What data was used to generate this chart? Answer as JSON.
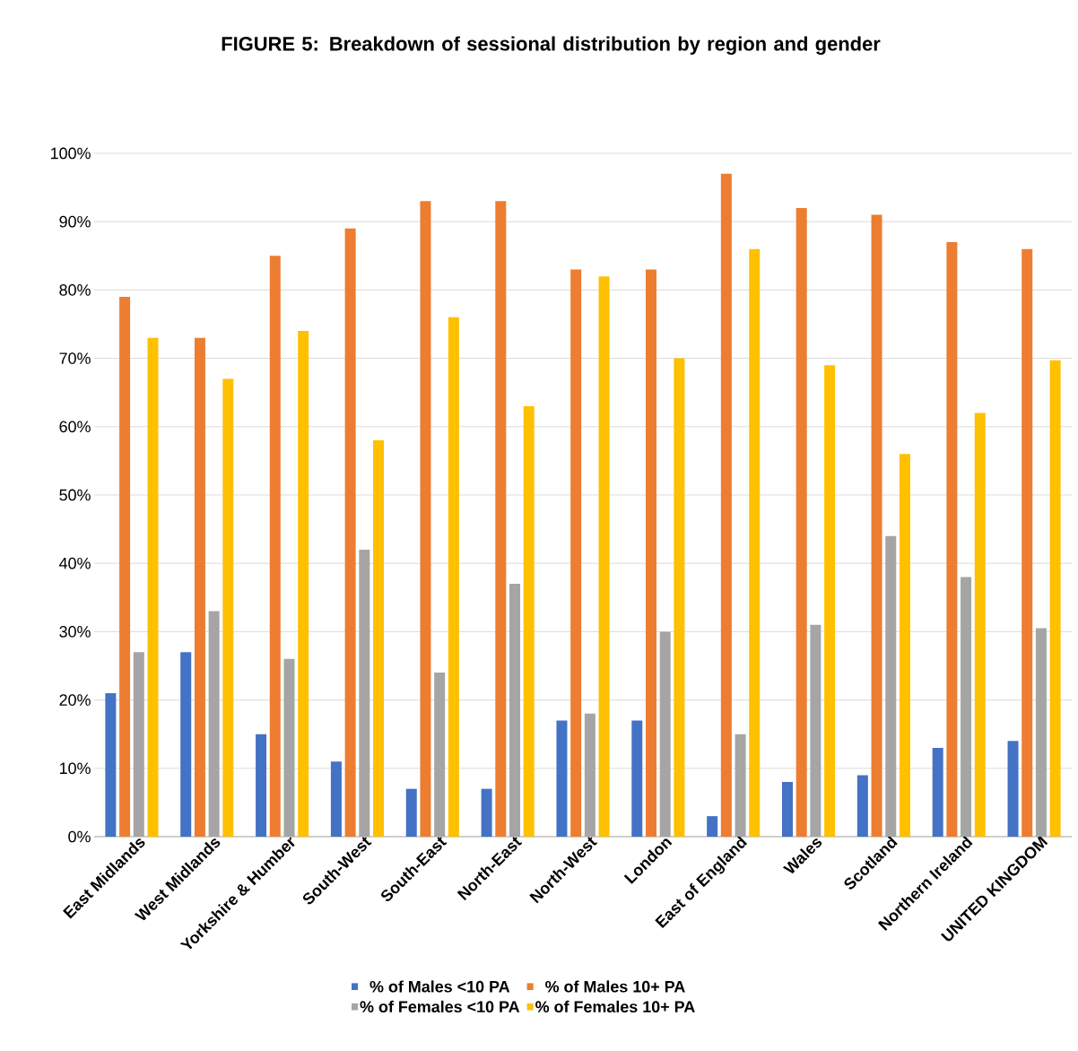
{
  "chart_data": {
    "type": "bar",
    "title": "FIGURE 5: Breakdown of sessional distribution by region and gender",
    "categories": [
      "East Midlands",
      "West Midlands",
      "Yorkshire & Humber",
      "South-West",
      "South-East",
      "North-East",
      "North-West",
      "London",
      "East of England",
      "Wales",
      "Scotland",
      "Northern Ireland",
      "UNITED KINGDOM"
    ],
    "series": [
      {
        "name": "% of Males <10 PA",
        "color": "#4472c4",
        "values": [
          21,
          27,
          15,
          11,
          7,
          7,
          17,
          17,
          3,
          8,
          9,
          13,
          14
        ]
      },
      {
        "name": "% of Males 10+ PA",
        "color": "#ed7d31",
        "values": [
          79,
          73,
          85,
          89,
          93,
          93,
          83,
          83,
          97,
          92,
          91,
          87,
          86
        ]
      },
      {
        "name": "% of Females <10 PA",
        "color": "#a5a5a5",
        "values": [
          27,
          33,
          26,
          42,
          24,
          37,
          18,
          30,
          15,
          31,
          44,
          38,
          30.5
        ]
      },
      {
        "name": "% of Females 10+ PA",
        "color": "#ffc000",
        "values": [
          73,
          67,
          74,
          58,
          76,
          63,
          82,
          70,
          86,
          69,
          56,
          62,
          69.7
        ]
      }
    ],
    "ylim": [
      0,
      100
    ],
    "yticks": [
      {
        "value": 0,
        "label": "0%"
      },
      {
        "value": 10,
        "label": "10%"
      },
      {
        "value": 20,
        "label": "20%"
      },
      {
        "value": 30,
        "label": "30%"
      },
      {
        "value": 40,
        "label": "40%"
      },
      {
        "value": 50,
        "label": "50%"
      },
      {
        "value": 60,
        "label": "60%"
      },
      {
        "value": 70,
        "label": "70%"
      },
      {
        "value": 80,
        "label": "80%"
      },
      {
        "value": 90,
        "label": "90%"
      },
      {
        "value": 100,
        "label": "100%"
      }
    ],
    "grid": "y",
    "legend": "bottom"
  }
}
